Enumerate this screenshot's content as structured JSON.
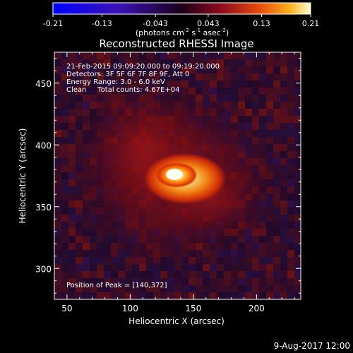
{
  "colorbar": {
    "ticks": [
      "-0.21",
      "-0.13",
      "-0.043",
      "0.043",
      "0.13",
      "0.21"
    ],
    "tick_values": [
      -0.21,
      -0.13,
      -0.043,
      0.043,
      0.13,
      0.21
    ],
    "range": [
      -0.21,
      0.21
    ],
    "units_main": "(photons cm",
    "units_exp1": "-2",
    "units_mid": " s",
    "units_exp2": "-1",
    "units_after": " asec",
    "units_exp3": "-2",
    "units_close": ")"
  },
  "title": "Reconstructed RHESSI Image",
  "info": {
    "line1": "21-Feb-2015 09:09:20.000 to 09:19:20.000",
    "line2": "Detectors: 3F 5F 6F 7F 8F 9F, Att 0",
    "line3": "Energy Range: 3.0 - 6.0 keV",
    "line4": "Clean     Total counts: 4.67E+04"
  },
  "peak_text": "Position of Peak = [140,372]",
  "axes": {
    "xlabel": "Heliocentric X (arcsec)",
    "ylabel": "Heliocentric Y (arcsec)",
    "x_ticks": [
      50,
      100,
      150,
      200
    ],
    "y_ticks": [
      300,
      350,
      400,
      450
    ],
    "x_range": [
      40,
      235
    ],
    "y_range": [
      275,
      475
    ]
  },
  "peak": {
    "x": 140,
    "y": 372
  },
  "footer_date": "9-Aug-2017 12:00",
  "colors": {
    "background": "#000000",
    "foreground": "#ffffff"
  }
}
